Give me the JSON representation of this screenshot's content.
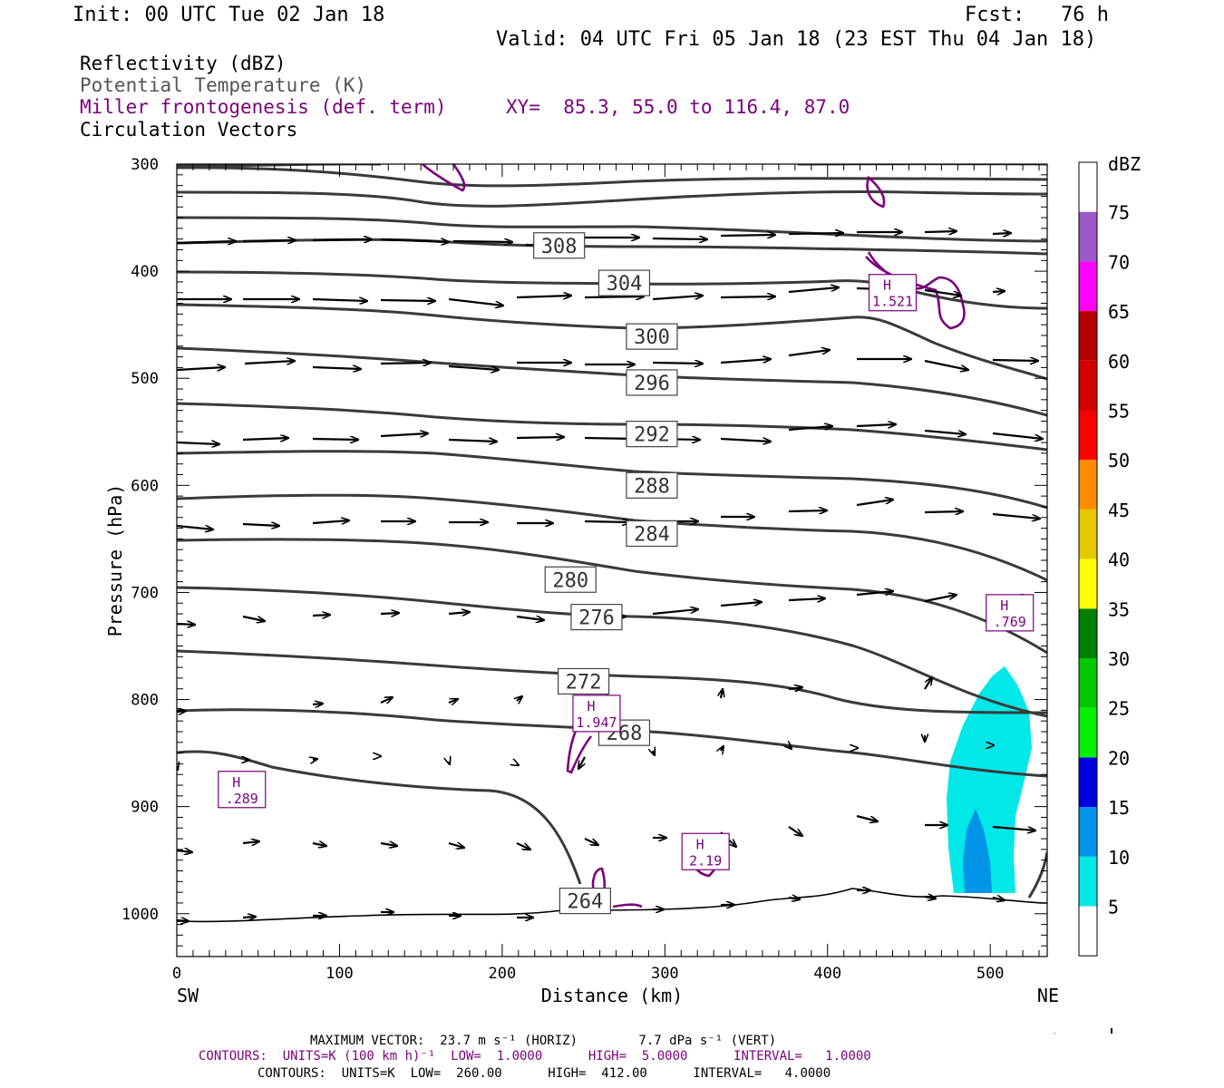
{
  "header": {
    "init": "Init: 00 UTC Tue 02 Jan 18",
    "fcst": "Fcst:   76 h",
    "valid": "Valid: 04 UTC Fri 05 Jan 18 (23 EST Thu 04 Jan 18)"
  },
  "legend": {
    "reflectivity": "Reflectivity (dBZ)",
    "theta": "Potential Temperature (K)",
    "miller": "Miller frontogenesis (def. term)",
    "xy": "XY=  85.3, 55.0 to 116.4, 87.0",
    "vectors": "Circulation Vectors"
  },
  "colors": {
    "theta": "#3a3a3a",
    "miller": "#7b007b",
    "dbz": [
      "#00e8e8",
      "#0094e8",
      "#0000e0",
      "#00f000",
      "#00c800",
      "#008000",
      "#ffff00",
      "#e6c800",
      "#ff8c00",
      "#ff0000",
      "#d20000",
      "#b40000",
      "#ff00ff",
      "#9b59c8"
    ]
  },
  "footer": {
    "max_vector": "MAXIMUM VECTOR:  23.7 m s⁻¹ (HORIZ)        7.7 dPa s⁻¹ (VERT)",
    "contours1": "CONTOURS:  UNITS=K (100 km h)⁻¹  LOW=  1.0000      HIGH=  5.0000      INTERVAL=   1.0000",
    "contours2": "CONTOURS:  UNITS=K  LOW=  260.00      HIGH=  412.00      INTERVAL=   4.0000"
  },
  "chart_data": {
    "type": "cross-section",
    "xlabel": "Distance (km)",
    "ylabel": "Pressure (hPa)",
    "xlim": [
      0,
      535
    ],
    "ylim": [
      1040,
      300
    ],
    "y_scale": "log-pressure",
    "x_ticks": [
      0,
      100,
      200,
      300,
      400,
      500
    ],
    "y_ticks": [
      300,
      400,
      500,
      600,
      700,
      800,
      900,
      1000
    ],
    "end_labels": {
      "left": "SW",
      "right": "NE"
    },
    "colorbar": {
      "title": "dBZ",
      "levels": [
        5,
        10,
        15,
        20,
        25,
        30,
        35,
        40,
        45,
        50,
        55,
        60,
        65,
        70,
        75
      ]
    },
    "theta_contours": [
      {
        "value": 308,
        "label": "308",
        "label_at": [
          235,
          376
        ]
      },
      {
        "value": 304,
        "label": "304",
        "label_at": [
          275,
          411
        ]
      },
      {
        "value": 300,
        "label": "300",
        "label_at": [
          292,
          461
        ]
      },
      {
        "value": 296,
        "label": "296",
        "label_at": [
          292,
          504
        ]
      },
      {
        "value": 292,
        "label": "292",
        "label_at": [
          292,
          552
        ]
      },
      {
        "value": 288,
        "label": "288",
        "label_at": [
          292,
          600
        ]
      },
      {
        "value": 284,
        "label": "284",
        "label_at": [
          292,
          645
        ]
      },
      {
        "value": 280,
        "label": "280",
        "label_at": [
          242,
          688
        ]
      },
      {
        "value": 276,
        "label": "276",
        "label_at": [
          258,
          723
        ]
      },
      {
        "value": 272,
        "label": "272",
        "label_at": [
          250,
          783
        ]
      },
      {
        "value": 268,
        "label": "268",
        "label_at": [
          275,
          831
        ]
      },
      {
        "value": 264,
        "label": "264",
        "label_at": [
          251,
          988
        ]
      }
    ],
    "frontogenesis_maxima": [
      {
        "label": "H",
        "value": "1.521",
        "at": [
          440,
          420
        ]
      },
      {
        "label": "H",
        "value": ".769",
        "at": [
          512,
          719
        ]
      },
      {
        "label": "H",
        "value": "1.947",
        "at": [
          258,
          813
        ]
      },
      {
        "label": "H",
        "value": ".289",
        "at": [
          40,
          884
        ]
      },
      {
        "label": "H",
        "value": "2.19",
        "at": [
          325,
          942
        ]
      }
    ],
    "reflectivity_echo": [
      {
        "dbz": 5,
        "location": "x 475-525 km, 780-985 hPa"
      },
      {
        "dbz": 10,
        "location": "x 485-500 km, 900-985 hPa"
      }
    ]
  }
}
